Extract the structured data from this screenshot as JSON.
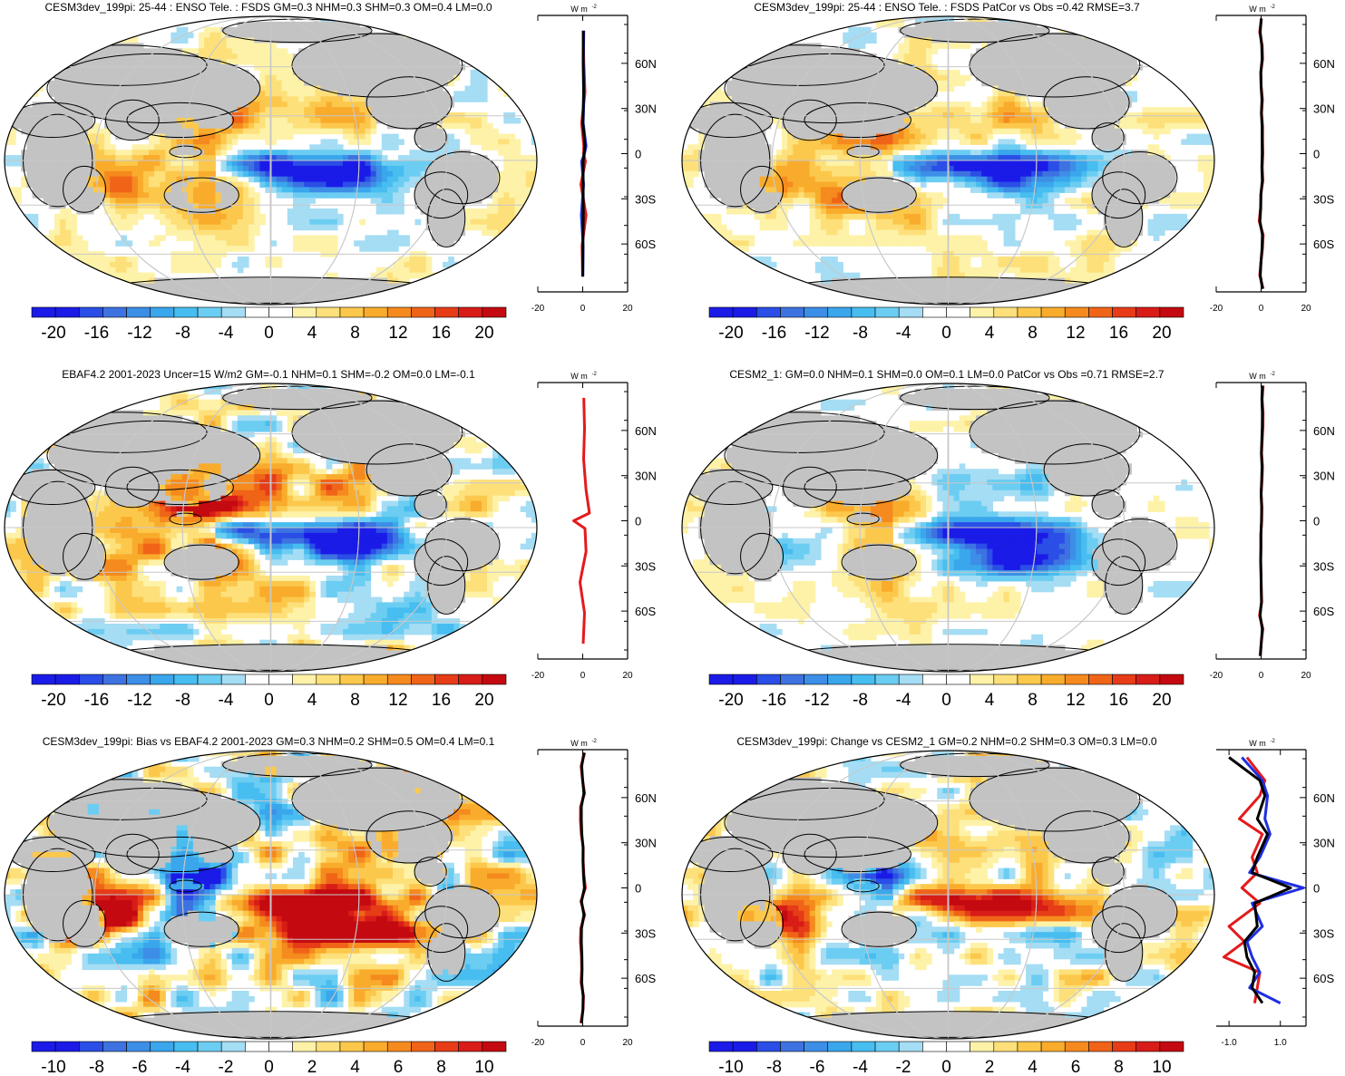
{
  "colors": {
    "land": "#c3c3c3",
    "grid": "#c8c8c8",
    "obs_line": "#e41a1c",
    "model_line": "#1f2fe0",
    "ref_line": "#000000",
    "palette": [
      "#1b1be8",
      "#2a4ee6",
      "#3d72e0",
      "#3d8ee6",
      "#3aa6ec",
      "#47bdf0",
      "#6ccdf2",
      "#a4ddf4",
      "#ffffff",
      "#ffffff",
      "#fdf2a8",
      "#fde07a",
      "#fcc84c",
      "#f9ac2c",
      "#f58a1e",
      "#f06418",
      "#e63c18",
      "#d81c18",
      "#c40a10"
    ]
  },
  "panels": [
    {
      "id": "p1",
      "title": "CESM3dev_199pi: 25-44 : ENSO Tele. : FSDS GM=0.3 NHM=0.3 SHM=0.3 OM=0.4 LM=0.0",
      "colorbar_labels": [
        "-20",
        "-16",
        "-12",
        "-8",
        "-4",
        "0",
        "4",
        "8",
        "12",
        "16",
        "20"
      ],
      "units_label": "W m",
      "units_sup": "-2",
      "lat_labels": [
        "60N",
        "30N",
        "0",
        "30S",
        "60S"
      ],
      "profile_ticks": [
        "-20",
        "0",
        "20"
      ],
      "profile_xlim": [
        -20,
        20
      ],
      "pattern": {
        "tropical_pacific": -1.0,
        "warm_pool": 0.55,
        "indian": 0.7,
        "australia": 0.5,
        "north_pacific": 0.35,
        "south_pacific_band": 0.45,
        "noise": 0.25
      }
    },
    {
      "id": "p2",
      "title": "CESM3dev_199pi: 25-44 : ENSO Tele. : FSDS PatCor vs Obs =0.42 RMSE=3.7",
      "colorbar_labels": [
        "-20",
        "-16",
        "-12",
        "-8",
        "-4",
        "0",
        "4",
        "8",
        "12",
        "16",
        "20"
      ],
      "units_label": "W m",
      "units_sup": "-2",
      "lat_labels": [
        "60N",
        "30N",
        "0",
        "30S",
        "60S"
      ],
      "profile_ticks": [
        "-20",
        "0",
        "20"
      ],
      "profile_xlim": [
        -20,
        20
      ],
      "pattern": {
        "tropical_pacific": -1.0,
        "warm_pool": 0.55,
        "indian": 0.7,
        "australia": 0.5,
        "north_pacific": 0.35,
        "south_pacific_band": 0.45,
        "noise": 0.25
      }
    },
    {
      "id": "p3",
      "title": "EBAF4.2 2001-2023 Uncer=15 W/m2 GM=-0.1 NHM=0.1 SHM=-0.2 OM=0.0 LM=-0.1",
      "colorbar_labels": [
        "-20",
        "-16",
        "-12",
        "-8",
        "-4",
        "0",
        "4",
        "8",
        "12",
        "16",
        "20"
      ],
      "units_label": "W m",
      "units_sup": "-2",
      "lat_labels": [
        "60N",
        "30N",
        "0",
        "30S",
        "60S"
      ],
      "profile_ticks": [
        "-20",
        "0",
        "20"
      ],
      "profile_xlim": [
        -20,
        20
      ],
      "pattern": {
        "tropical_pacific": -1.1,
        "warm_pool": 1.0,
        "indian": 0.3,
        "australia": 0.4,
        "north_pacific": 0.4,
        "south_pacific_band": 0.5,
        "noise": 0.45
      }
    },
    {
      "id": "p4",
      "title": "CESM2_1: GM=0.0 NHM=0.1 SHM=0.0 OM=0.1 LM=0.0 PatCor vs Obs =0.71 RMSE=2.7",
      "colorbar_labels": [
        "-20",
        "-16",
        "-12",
        "-8",
        "-4",
        "0",
        "4",
        "8",
        "12",
        "16",
        "20"
      ],
      "units_label": "W m",
      "units_sup": "-2",
      "lat_labels": [
        "60N",
        "30N",
        "0",
        "30S",
        "60S"
      ],
      "profile_ticks": [
        "-20",
        "0",
        "20"
      ],
      "profile_xlim": [
        -20,
        20
      ],
      "pattern": {
        "tropical_pacific": -1.0,
        "warm_pool": 0.6,
        "indian": -0.4,
        "australia": 0.4,
        "north_pacific": -0.4,
        "south_pacific_band": -0.4,
        "noise": 0.2
      }
    },
    {
      "id": "p5",
      "title": "CESM3dev_199pi: Bias vs EBAF4.2 2001-2023 GM=0.3 NHM=0.2 SHM=0.5 OM=0.4 LM=0.1",
      "colorbar_labels": [
        "-10",
        "-8",
        "-6",
        "-4",
        "-2",
        "0",
        "2",
        "4",
        "6",
        "8",
        "10"
      ],
      "units_label": "W m",
      "units_sup": "-2",
      "lat_labels": [
        "60N",
        "30N",
        "0",
        "30S",
        "60S"
      ],
      "profile_ticks": [
        "-20",
        "0",
        "20"
      ],
      "profile_xlim": [
        -20,
        20
      ],
      "pattern": {
        "tropical_pacific": 1.1,
        "warm_pool": -1.0,
        "indian": 1.0,
        "australia": -0.3,
        "north_pacific": 0.4,
        "south_pacific_band": 0.7,
        "noise": 0.6
      }
    },
    {
      "id": "p6",
      "title": "CESM3dev_199pi: Change vs CESM2_1 GM=0.2 NHM=0.2 SHM=0.3 OM=0.3 LM=0.0",
      "colorbar_labels": [
        "-10",
        "-8",
        "-6",
        "-4",
        "-2",
        "0",
        "2",
        "4",
        "6",
        "8",
        "10"
      ],
      "units_label": "W m",
      "units_sup": "-2",
      "lat_labels": [
        "60N",
        "30N",
        "0",
        "30S",
        "60S"
      ],
      "profile_ticks": [
        "-1.0",
        "1.0"
      ],
      "profile_xlim": [
        -1.5,
        2.0
      ],
      "pattern": {
        "tropical_pacific": 0.9,
        "warm_pool": -0.7,
        "indian": 0.9,
        "australia": -0.2,
        "north_pacific": 0.4,
        "south_pacific_band": -0.8,
        "noise": 0.4
      }
    }
  ],
  "chart_data": [
    {
      "type": "heatmap",
      "title": "CESM3dev_199pi: 25-44 : ENSO Tele. : FSDS GM=0.3 NHM=0.3 SHM=0.3 OM=0.4 LM=0.0",
      "field": "FSDS ENSO teleconnection (W m-2)",
      "colorbar": {
        "min": -20,
        "max": 20
      },
      "zonal_mean_profile": {
        "lat": [
          80,
          60,
          40,
          20,
          5,
          0,
          -5,
          -20,
          -40,
          -60,
          -80
        ],
        "model": [
          0.5,
          0.3,
          0.6,
          0.2,
          1.5,
          0.8,
          -0.5,
          0.4,
          -0.6,
          0.2,
          0.1
        ],
        "obs": [
          0.2,
          0.5,
          1.0,
          -0.5,
          0.5,
          0.4,
          1.2,
          -0.8,
          1.5,
          -0.3,
          0.0
        ],
        "ref": [
          0.3,
          0.2,
          0.4,
          0.1,
          1.0,
          0.6,
          0.2,
          0.2,
          0.3,
          0.1,
          0.0
        ]
      }
    },
    {
      "type": "heatmap",
      "title": "CESM3dev_199pi: 25-44 : ENSO Tele. : FSDS PatCor vs Obs =0.42 RMSE=3.7",
      "field": "FSDS ENSO teleconnection (W m-2)",
      "colorbar": {
        "min": -20,
        "max": 20
      }
    },
    {
      "type": "heatmap",
      "title": "EBAF4.2 2001-2023 Uncer=15 W/m2 GM=-0.1 NHM=0.1 SHM=-0.2 OM=0.0 LM=-0.1",
      "field": "FSDS ENSO teleconnection (W m-2)",
      "colorbar": {
        "min": -20,
        "max": 20
      },
      "zonal_mean_profile": {
        "lat": [
          80,
          60,
          40,
          20,
          5,
          0,
          -5,
          -20,
          -40,
          -60,
          -80
        ],
        "obs": [
          0.5,
          0.8,
          0.4,
          1.5,
          3.0,
          -4.0,
          1.0,
          1.5,
          -1.2,
          0.8,
          0.2
        ]
      }
    },
    {
      "type": "heatmap",
      "title": "CESM2_1: GM=0.0 NHM=0.1 SHM=0.0 OM=0.1 LM=0.0 PatCor vs Obs =0.71 RMSE=2.7",
      "field": "FSDS ENSO teleconnection (W m-2)",
      "colorbar": {
        "min": -20,
        "max": 20
      }
    },
    {
      "type": "heatmap",
      "title": "CESM3dev_199pi: Bias vs EBAF4.2 2001-2023 GM=0.3 NHM=0.2 SHM=0.5 OM=0.4 LM=0.1",
      "field": "Bias (W m-2)",
      "colorbar": {
        "min": -10,
        "max": 10
      }
    },
    {
      "type": "heatmap",
      "title": "CESM3dev_199pi: Change vs CESM2_1 GM=0.2 NHM=0.2 SHM=0.3 OM=0.3 LM=0.0",
      "field": "Change (W m-2)",
      "colorbar": {
        "min": -10,
        "max": 10
      },
      "zonal_mean_profile": {
        "lat": [
          85,
          70,
          60,
          45,
          35,
          20,
          10,
          0,
          -10,
          -25,
          -35,
          -45,
          -55,
          -65,
          -75
        ],
        "model": [
          -0.5,
          0.3,
          0.5,
          0.4,
          0.6,
          0.2,
          -0.2,
          1.9,
          -0.1,
          0.3,
          -0.3,
          -0.1,
          0.2,
          -0.2,
          1.0
        ],
        "obs": [
          -0.3,
          0.4,
          0.2,
          -0.6,
          0.3,
          -0.1,
          0.1,
          -0.5,
          0.2,
          -1.0,
          -0.4,
          -1.2,
          0.2,
          0.1,
          0.0
        ],
        "ref": [
          -1.0,
          0.2,
          0.4,
          0.1,
          0.5,
          0.1,
          -0.1,
          1.4,
          0.0,
          0.1,
          -0.4,
          -0.3,
          0.0,
          -0.1,
          0.3
        ]
      }
    }
  ]
}
